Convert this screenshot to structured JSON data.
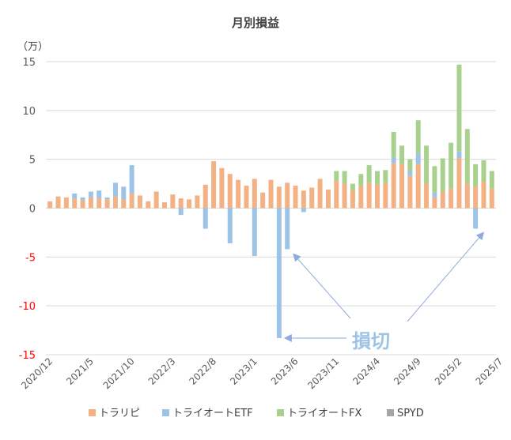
{
  "chart_data": {
    "type": "bar",
    "stacked": true,
    "title": "月別損益",
    "unit_label": "（万）",
    "ylim": [
      -15,
      15
    ],
    "yticks": [
      {
        "value": 15,
        "label": "15",
        "color": "#595959"
      },
      {
        "value": 10,
        "label": "10",
        "color": "#595959"
      },
      {
        "value": 5,
        "label": "5",
        "color": "#595959"
      },
      {
        "value": 0,
        "label": "0",
        "color": "#595959"
      },
      {
        "value": -5,
        "label": "-5",
        "color": "#ff0000"
      },
      {
        "value": -10,
        "label": "-10",
        "color": "#ff0000"
      },
      {
        "value": -15,
        "label": "-15",
        "color": "#ff0000"
      }
    ],
    "grid": true,
    "legend_position": "bottom",
    "xtick_labels": [
      {
        "index": 0,
        "label": "2020/12"
      },
      {
        "index": 5,
        "label": "2021/5"
      },
      {
        "index": 10,
        "label": "2021/10"
      },
      {
        "index": 15,
        "label": "2022/3"
      },
      {
        "index": 20,
        "label": "2022/8"
      },
      {
        "index": 25,
        "label": "2023/1"
      },
      {
        "index": 30,
        "label": "2023/6"
      },
      {
        "index": 35,
        "label": "2023/11"
      },
      {
        "index": 40,
        "label": "2024/4"
      },
      {
        "index": 45,
        "label": "2024/9"
      },
      {
        "index": 50,
        "label": "2025/2"
      },
      {
        "index": 55,
        "label": "2025/7"
      }
    ],
    "series": [
      {
        "name": "トラリピ",
        "color": "#f4b183",
        "values": [
          0.7,
          1.2,
          1.1,
          1.0,
          0.8,
          1.1,
          1.0,
          0.9,
          1.2,
          0.9,
          1.5,
          1.3,
          0.7,
          1.7,
          0.6,
          1.4,
          1.0,
          0.9,
          1.3,
          2.4,
          4.8,
          4.1,
          3.5,
          2.9,
          2.3,
          3.0,
          1.6,
          2.9,
          2.2,
          2.6,
          2.3,
          1.8,
          2.1,
          3.0,
          1.9,
          2.8,
          2.5,
          1.8,
          2.3,
          2.6,
          2.4,
          2.6,
          4.6,
          4.5,
          3.3,
          4.5,
          2.5,
          1.1,
          1.7,
          2.0,
          5.1,
          2.5,
          2.2,
          2.7,
          2.0
        ]
      },
      {
        "name": "トライオートETF",
        "color": "#9dc3e6",
        "values": [
          0,
          0,
          0,
          0.5,
          0.3,
          0.6,
          0.8,
          0.2,
          1.4,
          1.3,
          2.9,
          0,
          0,
          0,
          0,
          0,
          -0.7,
          0,
          0,
          -2.1,
          0,
          0,
          -3.6,
          0,
          0,
          -4.9,
          0,
          0,
          -13.3,
          -4.2,
          0,
          -0.4,
          0,
          0,
          0,
          0,
          0,
          0,
          0,
          0,
          0,
          0,
          0.6,
          0,
          0.5,
          1.1,
          0,
          0.5,
          0,
          0,
          0.7,
          0,
          -2.1,
          0,
          0
        ]
      },
      {
        "name": "トライオートFX",
        "color": "#a9d18e",
        "values": [
          0,
          0,
          0,
          0,
          0,
          0,
          0,
          0,
          0,
          0,
          0,
          0,
          0,
          0,
          0,
          0,
          0,
          0,
          0,
          0,
          0,
          0,
          0,
          0,
          0,
          0,
          0,
          0,
          0,
          0,
          0,
          0,
          0,
          0,
          0,
          1.0,
          1.3,
          0.7,
          1.2,
          1.8,
          1.4,
          1.3,
          2.6,
          1.9,
          1.2,
          3.4,
          3.9,
          2.7,
          3.4,
          4.7,
          8.9,
          5.6,
          2.3,
          2.2,
          1.8
        ]
      },
      {
        "name": "SPYD",
        "color": "#a5a5a5",
        "values": [
          0,
          0,
          0,
          0,
          0,
          0,
          0,
          0,
          0,
          0,
          0,
          0,
          0,
          0,
          0,
          0,
          0,
          0,
          0,
          0,
          0,
          0,
          0,
          0,
          0,
          0,
          0,
          0,
          0,
          0,
          0,
          0,
          0,
          0,
          0,
          0,
          0,
          0,
          0,
          0,
          0,
          0,
          0,
          0,
          0,
          0,
          0,
          0,
          0,
          0,
          0,
          0,
          0,
          0,
          0
        ]
      }
    ],
    "annotation": {
      "text": "損切",
      "color": "#9dc3e6",
      "targets": [
        {
          "index": 28,
          "value": -13.3
        },
        {
          "index": 29,
          "value": -4.8
        },
        {
          "index": 52,
          "value": -2.6
        }
      ]
    }
  }
}
